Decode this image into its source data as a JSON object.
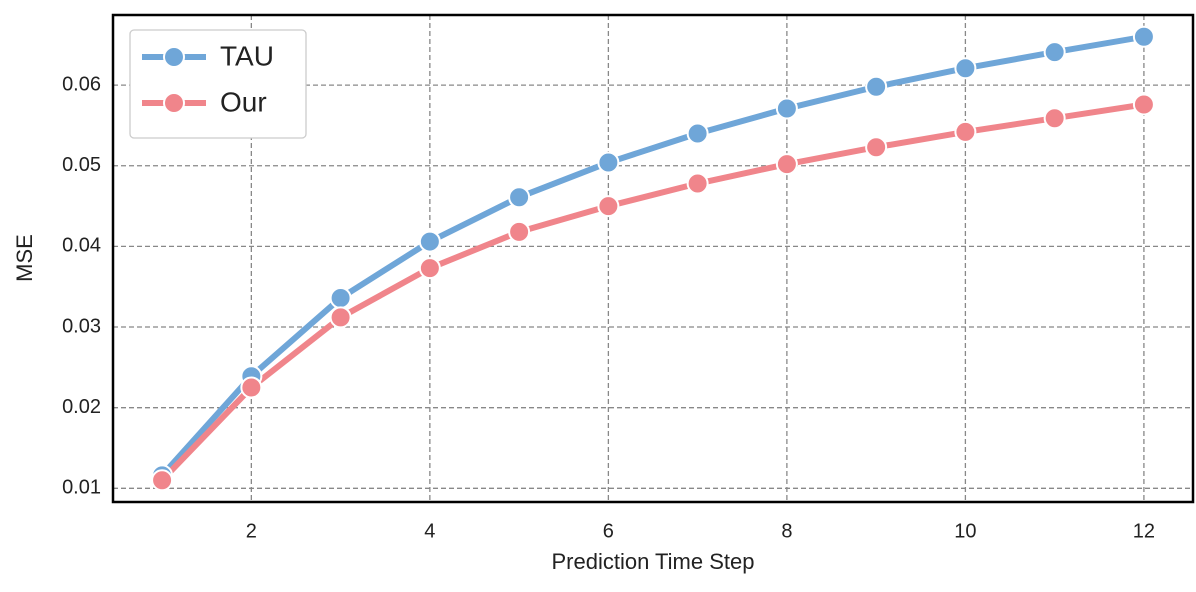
{
  "chart_data": {
    "type": "line",
    "x_label": "Prediction Time Step",
    "y_label": "MSE",
    "x": [
      1,
      2,
      3,
      4,
      5,
      6,
      7,
      8,
      9,
      10,
      11,
      12
    ],
    "series": [
      {
        "name": "TAU",
        "color": "#6fa6d8",
        "values": [
          0.0116,
          0.0239,
          0.0336,
          0.0406,
          0.0461,
          0.0504,
          0.054,
          0.0571,
          0.0598,
          0.0621,
          0.0641,
          0.066
        ]
      },
      {
        "name": "Our",
        "color": "#f0858b",
        "values": [
          0.011,
          0.0225,
          0.0312,
          0.0373,
          0.0418,
          0.045,
          0.0478,
          0.0502,
          0.0523,
          0.0542,
          0.0559,
          0.0576
        ]
      }
    ],
    "xlim": [
      0.45,
      12.55
    ],
    "xticks": [
      2,
      4,
      6,
      8,
      10,
      12
    ],
    "ylim": [
      0.0083,
      0.0687
    ],
    "yticks": [
      0.01,
      0.02,
      0.03,
      0.04,
      0.05,
      0.06
    ],
    "grid": true,
    "legend": "upper left"
  }
}
